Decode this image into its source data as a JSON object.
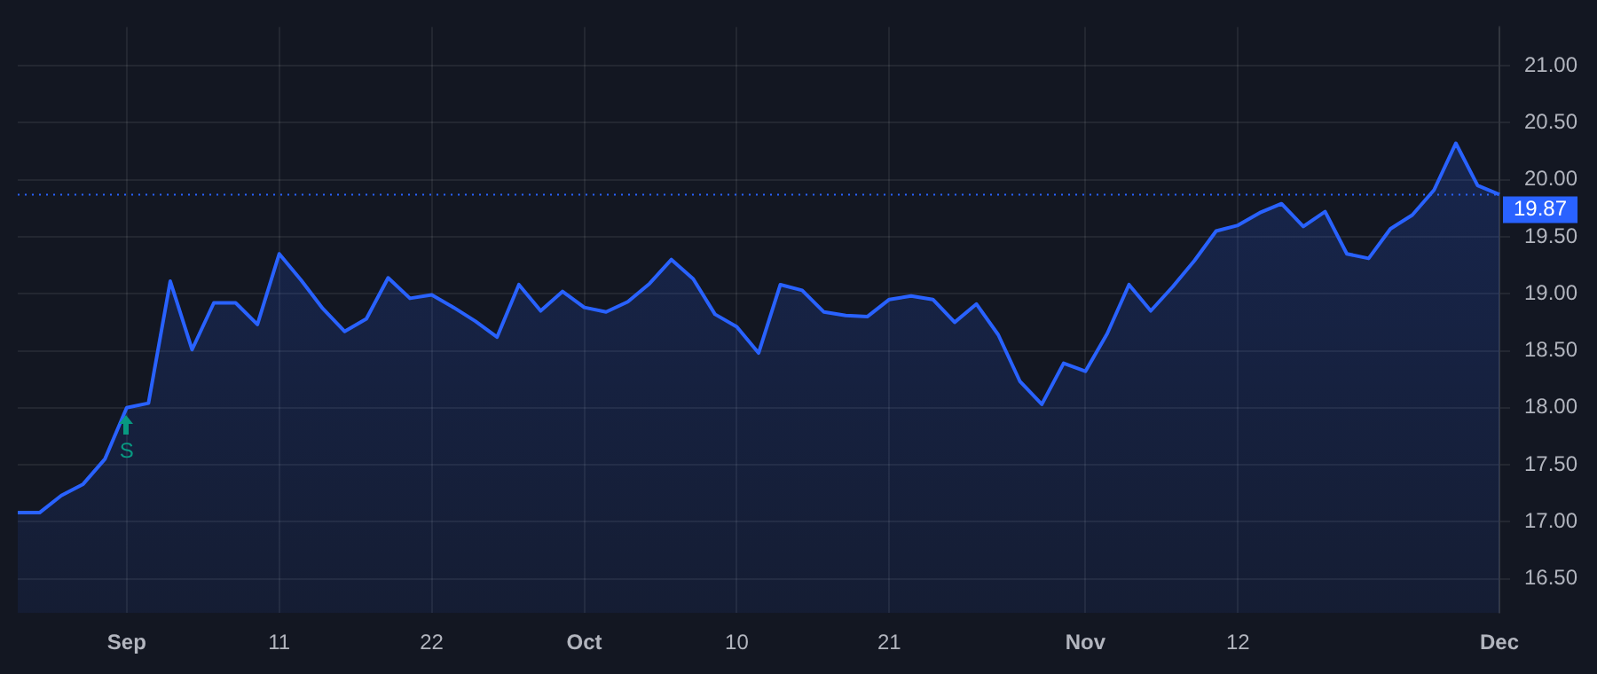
{
  "chart_data": {
    "type": "area",
    "categories": [
      null,
      null,
      null,
      null,
      null,
      "Sep",
      null,
      null,
      null,
      null,
      null,
      null,
      "11",
      null,
      null,
      null,
      null,
      null,
      null,
      "22",
      null,
      null,
      null,
      null,
      null,
      null,
      "Oct",
      null,
      null,
      null,
      null,
      null,
      null,
      "10",
      null,
      null,
      null,
      null,
      null,
      null,
      "21",
      null,
      null,
      null,
      null,
      null,
      null,
      null,
      null,
      "Nov",
      null,
      null,
      null,
      null,
      null,
      null,
      "12",
      null,
      null,
      null,
      null,
      null,
      null,
      null,
      null,
      null,
      null,
      null,
      "Dec"
    ],
    "series": [
      {
        "color": "#2962ff",
        "values": [
          17.08,
          17.08,
          17.23,
          17.33,
          17.55,
          18.0,
          18.04,
          19.11,
          18.51,
          18.92,
          18.92,
          18.73,
          19.35,
          19.12,
          18.87,
          18.67,
          18.78,
          19.14,
          18.96,
          18.99,
          18.88,
          18.76,
          18.62,
          19.08,
          18.85,
          19.02,
          18.88,
          18.84,
          18.93,
          19.09,
          19.3,
          19.13,
          18.82,
          18.71,
          18.48,
          19.08,
          19.03,
          18.84,
          18.81,
          18.8,
          18.95,
          18.98,
          18.95,
          18.75,
          18.91,
          18.64,
          18.23,
          18.03,
          18.39,
          18.32,
          18.65,
          19.08,
          18.85,
          19.06,
          19.29,
          19.55,
          19.6,
          19.71,
          19.79,
          19.59,
          19.72,
          19.35,
          19.31,
          19.57,
          19.69,
          19.91,
          20.32,
          19.95,
          19.87
        ]
      }
    ],
    "ylim": [
      16.2,
      21.34
    ],
    "yticks": [
      {
        "value": 16.5,
        "label": "16.50"
      },
      {
        "value": 17,
        "label": "17.00"
      },
      {
        "value": 17.5,
        "label": "17.50"
      },
      {
        "value": 18,
        "label": "18.00"
      },
      {
        "value": 18.5,
        "label": "18.50"
      },
      {
        "value": 19,
        "label": "19.00"
      },
      {
        "value": 19.5,
        "label": "19.50"
      },
      {
        "value": 20,
        "label": "20.00"
      },
      {
        "value": 20.5,
        "label": "20.50"
      },
      {
        "value": 21,
        "label": "21.00"
      }
    ],
    "grid": true,
    "ref_lines": [
      {
        "axis": "y",
        "value": 19.87,
        "label": "19.87",
        "color": "#2962ff",
        "line_style": "dotted"
      }
    ],
    "annotations": [
      {
        "text": "S",
        "x": "Sep",
        "y": 18.0
      }
    ]
  }
}
